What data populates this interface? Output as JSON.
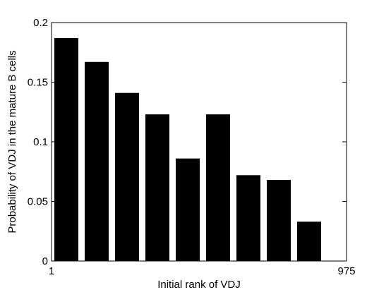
{
  "chart_data": {
    "type": "bar",
    "title": "",
    "xlabel": "Initial rank of VDJ",
    "ylabel": "Probability of VDJ in the mature B cells",
    "x_tick_labels": [
      "1",
      "975"
    ],
    "ylim": [
      0,
      0.2
    ],
    "y_ticks": [
      0,
      0.05,
      0.1,
      0.15,
      0.2
    ],
    "y_tick_labels": [
      "0",
      "0.05",
      "0.1",
      "0.15",
      "0.2"
    ],
    "values": [
      0.187,
      0.167,
      0.141,
      0.123,
      0.086,
      0.123,
      0.072,
      0.068,
      0.033
    ],
    "bar_color": "#000000",
    "grid": false,
    "legend": "none"
  }
}
